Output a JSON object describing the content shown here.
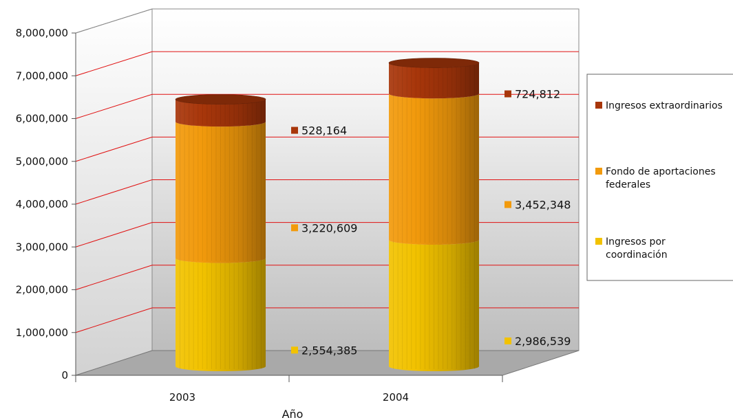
{
  "chart_data": {
    "type": "bar",
    "style": "3d-stacked-cylinder",
    "title": "",
    "xlabel": "Año",
    "ylabel": "",
    "categories": [
      "2003",
      "2004"
    ],
    "series": [
      {
        "name": "Ingresos por coordinación",
        "values": [
          2554385,
          2986539
        ],
        "value_labels": [
          "2,554,385",
          "2,986,539"
        ],
        "color": "#f2c200",
        "legend_lines": [
          "Ingresos por",
          "coordinación"
        ]
      },
      {
        "name": "Fondo de aportaciones federales",
        "values": [
          3220609,
          3452348
        ],
        "value_labels": [
          "3,220,609",
          "3,452,348"
        ],
        "color": "#f29a0c",
        "legend_lines": [
          "Fondo de aportaciones",
          "federales"
        ]
      },
      {
        "name": "Ingresos extraordinarios",
        "values": [
          528164,
          724812
        ],
        "value_labels": [
          "528,164",
          "724,812"
        ],
        "color": "#a8360a",
        "legend_lines": [
          "Ingresos extraordinarios"
        ]
      }
    ],
    "ylim": [
      0,
      8000000
    ],
    "yticks": [
      0,
      1000000,
      2000000,
      3000000,
      4000000,
      5000000,
      6000000,
      7000000,
      8000000
    ],
    "ytick_labels": [
      "0",
      "1,000,000",
      "2,000,000",
      "3,000,000",
      "4,000,000",
      "5,000,000",
      "6,000,000",
      "7,000,000",
      "8,000,000"
    ],
    "gridlines": true,
    "gridline_color": "#e01010",
    "legend_position": "right"
  }
}
